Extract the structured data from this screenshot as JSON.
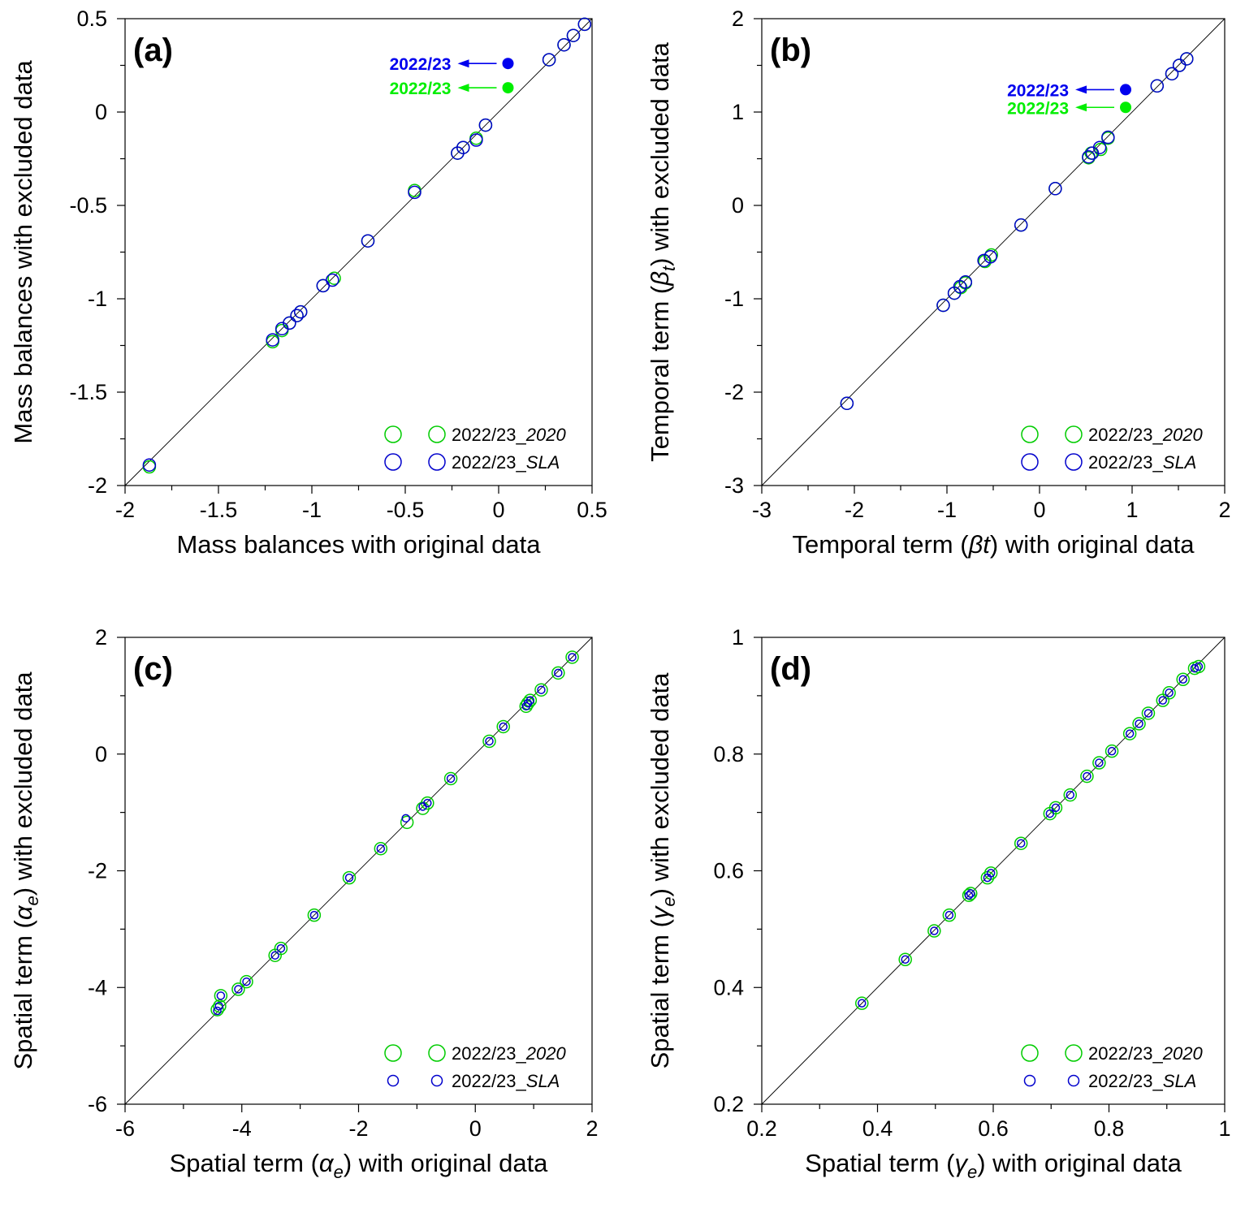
{
  "chart_data": [
    {
      "panel_label": "(a)",
      "type": "scatter",
      "xlabel_parts": [
        {
          "t": "Mass balances with original data"
        }
      ],
      "ylabel_parts": [
        {
          "t": "Mass balances with excluded data"
        }
      ],
      "xlim": [
        -2,
        0.5
      ],
      "ylim": [
        -2,
        0.5
      ],
      "xticks": [
        -2,
        -1.5,
        -1,
        -0.5,
        0,
        0.5
      ],
      "xtick_labels": [
        "-2",
        "-1.5",
        "-1",
        "-0.5",
        "0",
        "0.5"
      ],
      "yticks": [
        -2,
        -1.5,
        -1,
        -0.5,
        0,
        0.5
      ],
      "ytick_labels": [
        "-2",
        "-1.5",
        "-1",
        "-0.5",
        "0",
        "0.5"
      ],
      "identity_line": true,
      "annotations": [
        {
          "text": "2022/23",
          "color": "#0000ee",
          "x": 0.05,
          "y": 0.26
        },
        {
          "text": "2022/23",
          "color": "#00ee00",
          "x": 0.05,
          "y": 0.13
        }
      ],
      "legend": [
        {
          "label": "2022/23_",
          "label_italic": "2020",
          "color": "#00cc00",
          "size": "large"
        },
        {
          "label": "2022/23_",
          "label_italic": "SLA",
          "color": "#0000cc",
          "size": "large"
        }
      ],
      "series": [
        {
          "color": "#00cc00",
          "size": "large",
          "points": [
            [
              -1.87,
              -1.9
            ],
            [
              -1.21,
              -1.23
            ],
            [
              -1.16,
              -1.17
            ],
            [
              -1.12,
              -1.13
            ],
            [
              -1.08,
              -1.09
            ],
            [
              -1.06,
              -1.07
            ],
            [
              -0.94,
              -0.93
            ],
            [
              -0.88,
              -0.89
            ],
            [
              -0.7,
              -0.69
            ],
            [
              -0.45,
              -0.42
            ],
            [
              -0.22,
              -0.22
            ],
            [
              -0.19,
              -0.19
            ],
            [
              -0.12,
              -0.14
            ],
            [
              -0.07,
              -0.07
            ],
            [
              0.27,
              0.28
            ],
            [
              0.35,
              0.36
            ],
            [
              0.4,
              0.41
            ],
            [
              0.46,
              0.47
            ]
          ]
        },
        {
          "color": "#0000cc",
          "size": "large",
          "points": [
            [
              -1.87,
              -1.89
            ],
            [
              -1.21,
              -1.22
            ],
            [
              -1.16,
              -1.16
            ],
            [
              -1.12,
              -1.13
            ],
            [
              -1.08,
              -1.09
            ],
            [
              -1.06,
              -1.07
            ],
            [
              -0.94,
              -0.93
            ],
            [
              -0.89,
              -0.9
            ],
            [
              -0.7,
              -0.69
            ],
            [
              -0.45,
              -0.43
            ],
            [
              -0.22,
              -0.22
            ],
            [
              -0.19,
              -0.19
            ],
            [
              -0.12,
              -0.15
            ],
            [
              -0.07,
              -0.07
            ],
            [
              0.27,
              0.28
            ],
            [
              0.35,
              0.36
            ],
            [
              0.4,
              0.41
            ],
            [
              0.46,
              0.47
            ]
          ]
        }
      ]
    },
    {
      "panel_label": "(b)",
      "type": "scatter",
      "xlabel_parts": [
        {
          "t": "Temporal term ("
        },
        {
          "t": "βt",
          "i": true
        },
        {
          "t": ") with original data"
        }
      ],
      "ylabel_parts": [
        {
          "t": "Temporal term ("
        },
        {
          "t": "β",
          "i": true
        },
        {
          "t": "t",
          "i": true,
          "sub": true
        },
        {
          "t": ") with excluded data"
        }
      ],
      "xlim": [
        -3,
        2
      ],
      "ylim": [
        -3,
        2
      ],
      "xticks": [
        -3,
        -2,
        -1,
        0,
        1,
        2
      ],
      "xtick_labels": [
        "-3",
        "-2",
        "-1",
        "0",
        "1",
        "2"
      ],
      "yticks": [
        -3,
        -2,
        -1,
        0,
        1,
        2
      ],
      "ytick_labels": [
        "-3",
        "-2",
        "-1",
        "0",
        "1",
        "2"
      ],
      "identity_line": true,
      "annotations": [
        {
          "text": "2022/23",
          "color": "#0000ee",
          "x": 0.93,
          "y": 1.24
        },
        {
          "text": "2022/23",
          "color": "#00ee00",
          "x": 0.93,
          "y": 1.05
        }
      ],
      "legend": [
        {
          "label": "2022/23_",
          "label_italic": "2020",
          "color": "#00cc00",
          "size": "large"
        },
        {
          "label": "2022/23_",
          "label_italic": "SLA",
          "color": "#0000cc",
          "size": "large"
        }
      ],
      "series": [
        {
          "color": "#00cc00",
          "size": "large",
          "points": [
            [
              -2.08,
              -2.12
            ],
            [
              -1.04,
              -1.07
            ],
            [
              -0.92,
              -0.94
            ],
            [
              -0.85,
              -0.88
            ],
            [
              -0.8,
              -0.83
            ],
            [
              -0.59,
              -0.6
            ],
            [
              -0.52,
              -0.53
            ],
            [
              -0.2,
              -0.21
            ],
            [
              0.17,
              0.18
            ],
            [
              0.53,
              0.51
            ],
            [
              0.56,
              0.56
            ],
            [
              0.66,
              0.6
            ],
            [
              0.74,
              0.72
            ],
            [
              1.27,
              1.28
            ],
            [
              1.43,
              1.41
            ],
            [
              1.51,
              1.5
            ],
            [
              1.59,
              1.57
            ]
          ]
        },
        {
          "color": "#0000cc",
          "size": "large",
          "points": [
            [
              -2.08,
              -2.12
            ],
            [
              -1.04,
              -1.07
            ],
            [
              -0.92,
              -0.94
            ],
            [
              -0.86,
              -0.87
            ],
            [
              -0.8,
              -0.82
            ],
            [
              -0.6,
              -0.59
            ],
            [
              -0.53,
              -0.55
            ],
            [
              -0.2,
              -0.21
            ],
            [
              0.17,
              0.18
            ],
            [
              0.53,
              0.52
            ],
            [
              0.57,
              0.56
            ],
            [
              0.65,
              0.62
            ],
            [
              0.74,
              0.73
            ],
            [
              1.27,
              1.28
            ],
            [
              1.43,
              1.41
            ],
            [
              1.51,
              1.5
            ],
            [
              1.59,
              1.57
            ]
          ]
        }
      ]
    },
    {
      "panel_label": "(c)",
      "type": "scatter",
      "xlabel_parts": [
        {
          "t": "Spatial term ("
        },
        {
          "t": "α",
          "i": true
        },
        {
          "t": "e",
          "i": true,
          "sub": true
        },
        {
          "t": ") with original data"
        }
      ],
      "ylabel_parts": [
        {
          "t": "Spatial term ("
        },
        {
          "t": "α",
          "i": true
        },
        {
          "t": "e",
          "i": true,
          "sub": true
        },
        {
          "t": ") with excluded data"
        }
      ],
      "xlim": [
        -6,
        2
      ],
      "ylim": [
        -6,
        2
      ],
      "xticks": [
        -6,
        -4,
        -2,
        0,
        2
      ],
      "xtick_labels": [
        "-6",
        "-4",
        "-2",
        "0",
        "2"
      ],
      "yticks": [
        -6,
        -4,
        -2,
        0,
        2
      ],
      "ytick_labels": [
        "-6",
        "-4",
        "-2",
        "0",
        "2"
      ],
      "identity_line": true,
      "annotations": [],
      "legend": [
        {
          "label": "2022/23_",
          "label_italic": "2020",
          "color": "#00cc00",
          "size": "large"
        },
        {
          "label": "2022/23_",
          "label_italic": "SLA",
          "color": "#0000cc",
          "size": "small"
        }
      ],
      "series": [
        {
          "color": "#00cc00",
          "size": "large",
          "points": [
            [
              -4.42,
              -4.38
            ],
            [
              -4.38,
              -4.32
            ],
            [
              -4.36,
              -4.14
            ],
            [
              -4.06,
              -4.03
            ],
            [
              -3.92,
              -3.9
            ],
            [
              -3.43,
              -3.45
            ],
            [
              -3.33,
              -3.33
            ],
            [
              -2.76,
              -2.76
            ],
            [
              -2.16,
              -2.12
            ],
            [
              -1.62,
              -1.62
            ],
            [
              -1.17,
              -1.17
            ],
            [
              -0.9,
              -0.93
            ],
            [
              -0.82,
              -0.84
            ],
            [
              -0.42,
              -0.42
            ],
            [
              0.24,
              0.22
            ],
            [
              0.48,
              0.47
            ],
            [
              0.87,
              0.82
            ],
            [
              0.9,
              0.87
            ],
            [
              0.94,
              0.92
            ],
            [
              1.13,
              1.1
            ],
            [
              1.42,
              1.39
            ],
            [
              1.66,
              1.66
            ]
          ]
        },
        {
          "color": "#0000cc",
          "size": "small",
          "points": [
            [
              -4.42,
              -4.4
            ],
            [
              -4.39,
              -4.32
            ],
            [
              -4.36,
              -4.14
            ],
            [
              -4.06,
              -4.03
            ],
            [
              -3.92,
              -3.9
            ],
            [
              -3.43,
              -3.45
            ],
            [
              -3.33,
              -3.33
            ],
            [
              -2.76,
              -2.76
            ],
            [
              -2.16,
              -2.12
            ],
            [
              -1.62,
              -1.62
            ],
            [
              -1.19,
              -1.1
            ],
            [
              -0.9,
              -0.9
            ],
            [
              -0.82,
              -0.84
            ],
            [
              -0.42,
              -0.42
            ],
            [
              0.24,
              0.22
            ],
            [
              0.48,
              0.47
            ],
            [
              0.87,
              0.82
            ],
            [
              0.9,
              0.87
            ],
            [
              0.94,
              0.92
            ],
            [
              1.13,
              1.1
            ],
            [
              1.42,
              1.39
            ],
            [
              1.66,
              1.66
            ]
          ]
        }
      ]
    },
    {
      "panel_label": "(d)",
      "type": "scatter",
      "xlabel_parts": [
        {
          "t": "Spatial term ("
        },
        {
          "t": "γ",
          "i": true
        },
        {
          "t": "e",
          "i": true,
          "sub": true
        },
        {
          "t": ") with original data"
        }
      ],
      "ylabel_parts": [
        {
          "t": "Spatial term ("
        },
        {
          "t": "γ",
          "i": true
        },
        {
          "t": "e",
          "i": true,
          "sub": true
        },
        {
          "t": ") with excluded data"
        }
      ],
      "xlim": [
        0.2,
        1
      ],
      "ylim": [
        0.2,
        1
      ],
      "xticks": [
        0.2,
        0.4,
        0.6,
        0.8,
        1
      ],
      "xtick_labels": [
        "0.2",
        "0.4",
        "0.6",
        "0.8",
        "1"
      ],
      "yticks": [
        0.2,
        0.4,
        0.6,
        0.8,
        1
      ],
      "ytick_labels": [
        "0.2",
        "0.4",
        "0.6",
        "0.8",
        "1"
      ],
      "identity_line": true,
      "annotations": [],
      "legend": [
        {
          "label": "2022/23_",
          "label_italic": "2020",
          "color": "#00cc00",
          "size": "large"
        },
        {
          "label": "2022/23_",
          "label_italic": "SLA",
          "color": "#0000cc",
          "size": "small"
        }
      ],
      "series": [
        {
          "color": "#00cc00",
          "size": "large",
          "points": [
            [
              0.373,
              0.373
            ],
            [
              0.448,
              0.448
            ],
            [
              0.498,
              0.497
            ],
            [
              0.524,
              0.524
            ],
            [
              0.558,
              0.558
            ],
            [
              0.561,
              0.561
            ],
            [
              0.59,
              0.588
            ],
            [
              0.596,
              0.596
            ],
            [
              0.648,
              0.647
            ],
            [
              0.698,
              0.698
            ],
            [
              0.708,
              0.708
            ],
            [
              0.733,
              0.73
            ],
            [
              0.762,
              0.762
            ],
            [
              0.783,
              0.785
            ],
            [
              0.805,
              0.805
            ],
            [
              0.836,
              0.835
            ],
            [
              0.852,
              0.852
            ],
            [
              0.868,
              0.87
            ],
            [
              0.893,
              0.892
            ],
            [
              0.904,
              0.905
            ],
            [
              0.928,
              0.928
            ],
            [
              0.948,
              0.947
            ],
            [
              0.955,
              0.95
            ]
          ]
        },
        {
          "color": "#0000cc",
          "size": "small",
          "points": [
            [
              0.373,
              0.373
            ],
            [
              0.448,
              0.448
            ],
            [
              0.498,
              0.497
            ],
            [
              0.524,
              0.524
            ],
            [
              0.558,
              0.558
            ],
            [
              0.561,
              0.561
            ],
            [
              0.59,
              0.588
            ],
            [
              0.596,
              0.596
            ],
            [
              0.648,
              0.647
            ],
            [
              0.698,
              0.698
            ],
            [
              0.708,
              0.708
            ],
            [
              0.733,
              0.73
            ],
            [
              0.762,
              0.762
            ],
            [
              0.783,
              0.785
            ],
            [
              0.805,
              0.805
            ],
            [
              0.836,
              0.835
            ],
            [
              0.852,
              0.852
            ],
            [
              0.868,
              0.87
            ],
            [
              0.893,
              0.892
            ],
            [
              0.904,
              0.905
            ],
            [
              0.928,
              0.928
            ],
            [
              0.948,
              0.947
            ],
            [
              0.955,
              0.95
            ]
          ]
        }
      ]
    }
  ]
}
